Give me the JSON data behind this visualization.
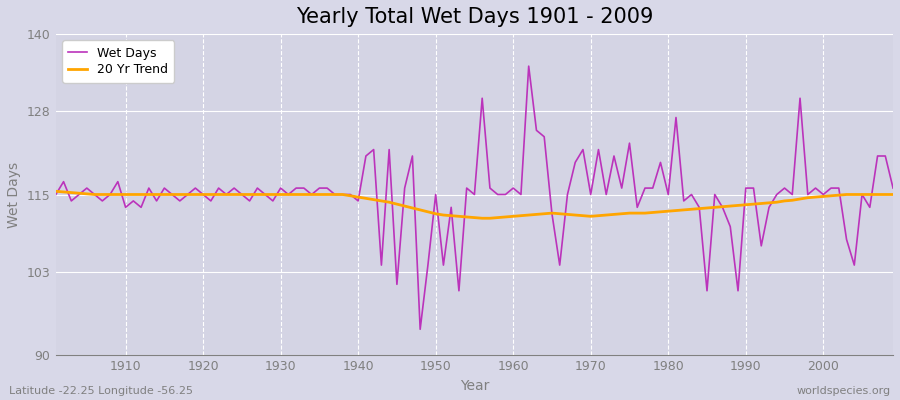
{
  "title": "Yearly Total Wet Days 1901 - 2009",
  "xlabel": "Year",
  "ylabel": "Wet Days",
  "lat_lon_text": "Latitude -22.25 Longitude -56.25",
  "watermark": "worldspecies.org",
  "years": [
    1901,
    1902,
    1903,
    1904,
    1905,
    1906,
    1907,
    1908,
    1909,
    1910,
    1911,
    1912,
    1913,
    1914,
    1915,
    1916,
    1917,
    1918,
    1919,
    1920,
    1921,
    1922,
    1923,
    1924,
    1925,
    1926,
    1927,
    1928,
    1929,
    1930,
    1931,
    1932,
    1933,
    1934,
    1935,
    1936,
    1937,
    1938,
    1939,
    1940,
    1941,
    1942,
    1943,
    1944,
    1945,
    1946,
    1947,
    1948,
    1949,
    1950,
    1951,
    1952,
    1953,
    1954,
    1955,
    1956,
    1957,
    1958,
    1959,
    1960,
    1961,
    1962,
    1963,
    1964,
    1965,
    1966,
    1967,
    1968,
    1969,
    1970,
    1971,
    1972,
    1973,
    1974,
    1975,
    1976,
    1977,
    1978,
    1979,
    1980,
    1981,
    1982,
    1983,
    1984,
    1985,
    1986,
    1987,
    1988,
    1989,
    1990,
    1991,
    1992,
    1993,
    1994,
    1995,
    1996,
    1997,
    1998,
    1999,
    2000,
    2001,
    2002,
    2003,
    2004,
    2005,
    2006,
    2007,
    2008,
    2009
  ],
  "wet_days": [
    115,
    117,
    114,
    115,
    116,
    115,
    114,
    115,
    117,
    113,
    114,
    113,
    116,
    114,
    116,
    115,
    114,
    115,
    116,
    115,
    114,
    116,
    115,
    116,
    115,
    114,
    116,
    115,
    114,
    116,
    115,
    116,
    116,
    115,
    116,
    116,
    115,
    115,
    115,
    114,
    121,
    122,
    104,
    122,
    101,
    116,
    121,
    94,
    104,
    115,
    104,
    113,
    100,
    116,
    115,
    130,
    116,
    115,
    115,
    116,
    115,
    135,
    125,
    124,
    112,
    104,
    115,
    120,
    122,
    115,
    122,
    115,
    121,
    116,
    123,
    113,
    116,
    116,
    120,
    115,
    127,
    114,
    115,
    113,
    100,
    115,
    113,
    110,
    100,
    116,
    116,
    107,
    113,
    115,
    116,
    115,
    130,
    115,
    116,
    115,
    116,
    116,
    108,
    104,
    115,
    113,
    121,
    121,
    116
  ],
  "trend_values": [
    115.5,
    115.4,
    115.3,
    115.2,
    115.1,
    115.0,
    115.0,
    115.0,
    115.0,
    115.0,
    115.0,
    115.0,
    115.0,
    115.0,
    115.0,
    115.0,
    115.0,
    115.0,
    115.0,
    115.0,
    115.0,
    115.0,
    115.0,
    115.0,
    115.0,
    115.0,
    115.0,
    115.0,
    115.0,
    115.0,
    115.0,
    115.0,
    115.0,
    115.0,
    115.0,
    115.0,
    115.0,
    115.0,
    114.8,
    114.6,
    114.4,
    114.2,
    114.0,
    113.8,
    113.5,
    113.2,
    112.9,
    112.6,
    112.3,
    112.0,
    111.8,
    111.7,
    111.6,
    111.5,
    111.4,
    111.3,
    111.3,
    111.4,
    111.5,
    111.6,
    111.7,
    111.8,
    111.9,
    112.0,
    112.1,
    112.0,
    111.9,
    111.8,
    111.7,
    111.6,
    111.7,
    111.8,
    111.9,
    112.0,
    112.1,
    112.1,
    112.1,
    112.2,
    112.3,
    112.4,
    112.5,
    112.6,
    112.7,
    112.8,
    112.9,
    113.0,
    113.1,
    113.2,
    113.3,
    113.4,
    113.5,
    113.6,
    113.7,
    113.8,
    114.0,
    114.1,
    114.3,
    114.5,
    114.6,
    114.7,
    114.8,
    114.9,
    115.0,
    115.0,
    115.0,
    115.0,
    115.0,
    115.0,
    115.0
  ],
  "wet_days_color": "#BB33BB",
  "trend_color": "#FFA500",
  "fig_bg_color": "#D8D8E8",
  "plot_bg_color": "#D4D4E4",
  "ylim": [
    90,
    140
  ],
  "yticks": [
    90,
    103,
    115,
    128,
    140
  ],
  "xlim": [
    1901,
    2009
  ],
  "xticks": [
    1910,
    1920,
    1930,
    1940,
    1950,
    1960,
    1970,
    1980,
    1990,
    2000
  ],
  "title_fontsize": 15,
  "axis_label_fontsize": 10,
  "tick_fontsize": 9,
  "legend_fontsize": 9,
  "linewidth_wet": 1.2,
  "linewidth_trend": 2.0
}
